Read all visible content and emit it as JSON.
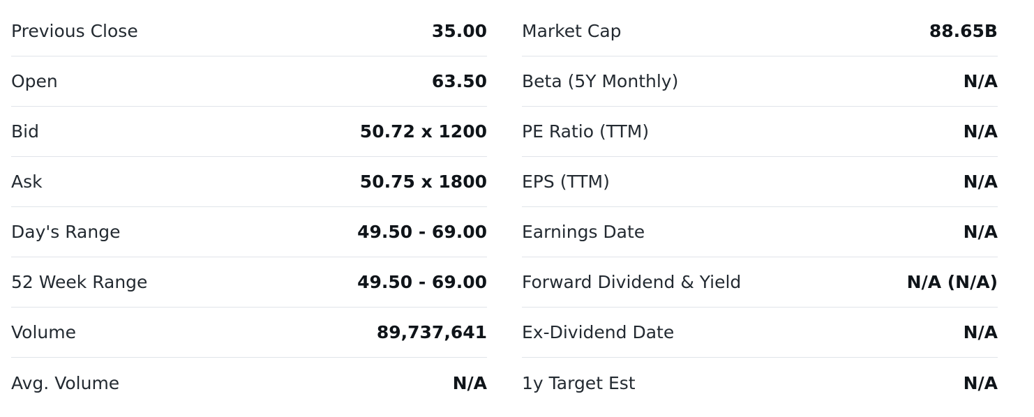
{
  "left_table": {
    "rows": [
      {
        "label": "Previous Close",
        "value": "35.00"
      },
      {
        "label": "Open",
        "value": "63.50"
      },
      {
        "label": "Bid",
        "value": "50.72 x 1200"
      },
      {
        "label": "Ask",
        "value": "50.75 x 1800"
      },
      {
        "label": "Day's Range",
        "value": "49.50 - 69.00"
      },
      {
        "label": "52 Week Range",
        "value": "49.50 - 69.00"
      },
      {
        "label": "Volume",
        "value": "89,737,641"
      },
      {
        "label": "Avg. Volume",
        "value": "N/A"
      }
    ]
  },
  "right_table": {
    "rows": [
      {
        "label": "Market Cap",
        "value": "88.65B"
      },
      {
        "label": "Beta (5Y Monthly)",
        "value": "N/A"
      },
      {
        "label": "PE Ratio (TTM)",
        "value": "N/A"
      },
      {
        "label": "EPS (TTM)",
        "value": "N/A"
      },
      {
        "label": "Earnings Date",
        "value": "N/A"
      },
      {
        "label": "Forward Dividend & Yield",
        "value": "N/A (N/A)"
      },
      {
        "label": "Ex-Dividend Date",
        "value": "N/A"
      },
      {
        "label": "1y Target Est",
        "value": "N/A"
      }
    ]
  }
}
